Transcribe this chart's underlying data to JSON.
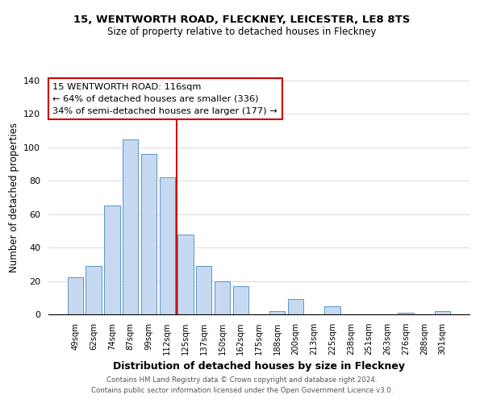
{
  "title_line1": "15, WENTWORTH ROAD, FLECKNEY, LEICESTER, LE8 8TS",
  "title_line2": "Size of property relative to detached houses in Fleckney",
  "xlabel": "Distribution of detached houses by size in Fleckney",
  "ylabel": "Number of detached properties",
  "bar_labels": [
    "49sqm",
    "62sqm",
    "74sqm",
    "87sqm",
    "99sqm",
    "112sqm",
    "125sqm",
    "137sqm",
    "150sqm",
    "162sqm",
    "175sqm",
    "188sqm",
    "200sqm",
    "213sqm",
    "225sqm",
    "238sqm",
    "251sqm",
    "263sqm",
    "276sqm",
    "288sqm",
    "301sqm"
  ],
  "bar_values": [
    22,
    29,
    65,
    105,
    96,
    82,
    48,
    29,
    20,
    17,
    0,
    2,
    9,
    0,
    5,
    0,
    0,
    0,
    1,
    0,
    2
  ],
  "bar_color": "#c6d9f0",
  "bar_edge_color": "#5a96c8",
  "vline_x": 5.5,
  "vline_color": "#cc0000",
  "annotation_title": "15 WENTWORTH ROAD: 116sqm",
  "annotation_line1": "← 64% of detached houses are smaller (336)",
  "annotation_line2": "34% of semi-detached houses are larger (177) →",
  "annotation_box_color": "#ffffff",
  "annotation_box_edge": "#cc0000",
  "ylim": [
    0,
    140
  ],
  "yticks": [
    0,
    20,
    40,
    60,
    80,
    100,
    120,
    140
  ],
  "footer_line1": "Contains HM Land Registry data © Crown copyright and database right 2024.",
  "footer_line2": "Contains public sector information licensed under the Open Government Licence v3.0."
}
